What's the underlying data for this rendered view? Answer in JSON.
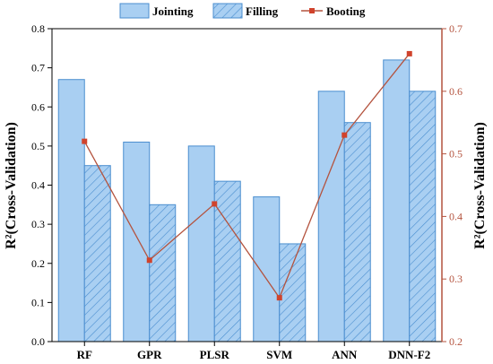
{
  "chart_data": {
    "type": "bar",
    "categories": [
      "RF",
      "GPR",
      "PLSR",
      "SVM",
      "ANN",
      "DNN-F2"
    ],
    "series": [
      {
        "name": "Jointing",
        "type": "bar",
        "axis": "left",
        "values": [
          0.67,
          0.51,
          0.5,
          0.37,
          0.64,
          0.72
        ]
      },
      {
        "name": "Filling",
        "type": "bar-hatched",
        "axis": "left",
        "values": [
          0.45,
          0.35,
          0.41,
          0.25,
          0.56,
          0.64
        ]
      },
      {
        "name": "Booting",
        "type": "line",
        "axis": "right",
        "values": [
          0.52,
          0.33,
          0.42,
          0.27,
          0.53,
          0.66
        ]
      }
    ],
    "ylabel_left": "R²(Cross-Validation)",
    "ylabel_right": "R²(Cross-Validation)",
    "ylim_left": [
      0.0,
      0.8
    ],
    "ylim_right": [
      0.2,
      0.7
    ],
    "yticks_left": [
      "0.0",
      "0.1",
      "0.2",
      "0.3",
      "0.4",
      "0.5",
      "0.6",
      "0.7",
      "0.8"
    ],
    "yticks_right": [
      "0.2",
      "0.3",
      "0.4",
      "0.5",
      "0.6",
      "0.7"
    ],
    "legend_position": "top",
    "grid": false,
    "colors": {
      "bar_fill": "#a9cff2",
      "bar_stroke": "#4a8ecf",
      "hatch": "#4a8ecf",
      "line": "#b4533e",
      "marker": "#d0432c",
      "right_axis": "#b4533e"
    }
  }
}
